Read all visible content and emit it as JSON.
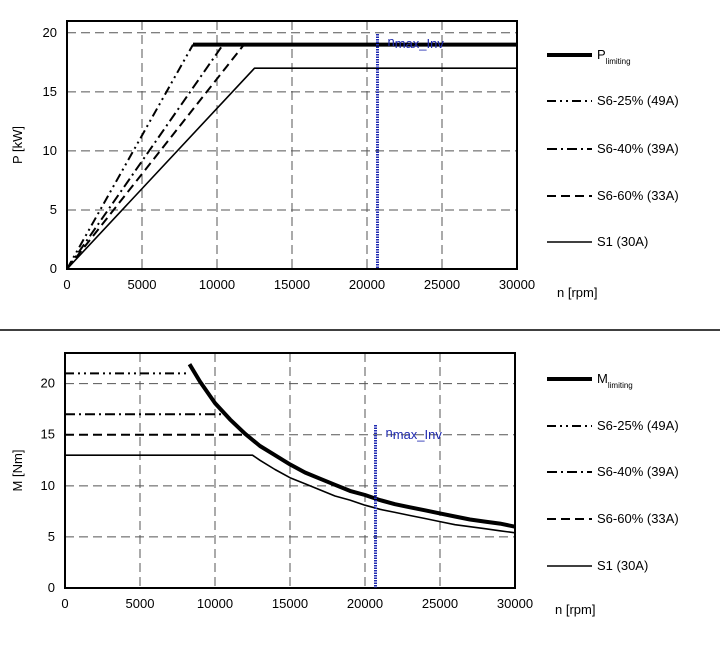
{
  "chart_data": [
    {
      "type": "line",
      "panel": "power",
      "xlabel": "n [rpm]",
      "ylabel": "P [kW]",
      "xlim": [
        0,
        30000
      ],
      "ylim": [
        0,
        21
      ],
      "xticks": [
        "0",
        "5000",
        "10000",
        "15000",
        "20000",
        "25000",
        "30000"
      ],
      "yticks": [
        "0",
        "5",
        "10",
        "15",
        "20"
      ],
      "grid": true,
      "legend_position": "right",
      "marker": {
        "label_main": "n",
        "label_sub": "max_Inv",
        "x": 20700,
        "color": "#1f2ab0"
      },
      "series": [
        {
          "name": "P",
          "name_sub": "limiting",
          "style": "thick",
          "points": [
            [
              8400,
              19
            ],
            [
              30000,
              19
            ]
          ]
        },
        {
          "name": "S6-25% (49A)",
          "style": "dashdotdot",
          "points": [
            [
              0,
              0
            ],
            [
              8400,
              19
            ]
          ]
        },
        {
          "name": "S6-40% (39A)",
          "style": "dashdot",
          "points": [
            [
              0,
              0
            ],
            [
              10400,
              19
            ]
          ]
        },
        {
          "name": "S6-60% (33A)",
          "style": "dashed",
          "points": [
            [
              0,
              0
            ],
            [
              11800,
              19
            ]
          ]
        },
        {
          "name": "S1 (30A)",
          "style": "solid",
          "points": [
            [
              0,
              0
            ],
            [
              12500,
              17
            ],
            [
              30000,
              17
            ]
          ]
        }
      ]
    },
    {
      "type": "line",
      "panel": "torque",
      "xlabel": "n [rpm]",
      "ylabel": "M [Nm]",
      "xlim": [
        0,
        30000
      ],
      "ylim": [
        0,
        23
      ],
      "xticks": [
        "0",
        "5000",
        "10000",
        "15000",
        "20000",
        "25000",
        "30000"
      ],
      "yticks": [
        "0",
        "5",
        "10",
        "15",
        "20"
      ],
      "grid": true,
      "legend_position": "right",
      "marker": {
        "label_main": "n",
        "label_sub": "max_Inv",
        "x": 20700,
        "color": "#1f2ab0"
      },
      "series": [
        {
          "name": "M",
          "name_sub": "limiting",
          "style": "thick",
          "points": [
            [
              8300,
              21.9
            ],
            [
              9000,
              20.2
            ],
            [
              10000,
              18.1
            ],
            [
              11000,
              16.5
            ],
            [
              12000,
              15.1
            ],
            [
              13000,
              13.9
            ],
            [
              14000,
              13.0
            ],
            [
              15000,
              12.1
            ],
            [
              16000,
              11.3
            ],
            [
              17000,
              10.7
            ],
            [
              18000,
              10.1
            ],
            [
              19000,
              9.5
            ],
            [
              20000,
              9.1
            ],
            [
              21000,
              8.6
            ],
            [
              22000,
              8.2
            ],
            [
              23000,
              7.9
            ],
            [
              24000,
              7.6
            ],
            [
              25000,
              7.3
            ],
            [
              26000,
              7.0
            ],
            [
              27000,
              6.7
            ],
            [
              28000,
              6.5
            ],
            [
              29000,
              6.3
            ],
            [
              30000,
              6.0
            ]
          ]
        },
        {
          "name": "S6-25% (49A)",
          "style": "dashdotdot",
          "points": [
            [
              0,
              21
            ],
            [
              8300,
              21
            ]
          ]
        },
        {
          "name": "S6-40% (39A)",
          "style": "dashdot",
          "points": [
            [
              0,
              17
            ],
            [
              10600,
              17
            ]
          ]
        },
        {
          "name": "S6-60% (33A)",
          "style": "dashed",
          "points": [
            [
              0,
              15
            ],
            [
              12000,
              15
            ]
          ]
        },
        {
          "name": "S1 (30A)",
          "style": "solid",
          "points": [
            [
              0,
              13
            ],
            [
              12500,
              13
            ],
            [
              13000,
              12.5
            ],
            [
              14000,
              11.6
            ],
            [
              15000,
              10.8
            ],
            [
              16000,
              10.2
            ],
            [
              17000,
              9.6
            ],
            [
              18000,
              9.0
            ],
            [
              19000,
              8.6
            ],
            [
              20000,
              8.1
            ],
            [
              21000,
              7.7
            ],
            [
              22000,
              7.4
            ],
            [
              23000,
              7.1
            ],
            [
              24000,
              6.8
            ],
            [
              25000,
              6.5
            ],
            [
              26000,
              6.2
            ],
            [
              27000,
              6.0
            ],
            [
              28000,
              5.8
            ],
            [
              29000,
              5.6
            ],
            [
              30000,
              5.4
            ]
          ]
        }
      ]
    }
  ]
}
